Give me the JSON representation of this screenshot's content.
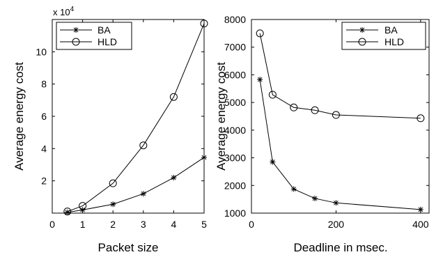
{
  "chart_data": [
    {
      "type": "line",
      "xlabel": "Packet size",
      "ylabel": "Average energy cost",
      "multiplier": "x 10",
      "multiplier_exp": "4",
      "xlim": [
        0,
        5
      ],
      "ylim": [
        0,
        12
      ],
      "xticks": [
        0,
        1,
        2,
        3,
        4,
        5
      ],
      "xtick_labels": [
        "0",
        "1",
        "2",
        "3",
        "4",
        "5"
      ],
      "yticks": [
        2,
        4,
        6,
        8,
        10
      ],
      "ytick_labels": [
        "2",
        "4",
        "6",
        "8",
        "10"
      ],
      "legend_position": "top-left",
      "series": [
        {
          "name": "BA",
          "marker": "star",
          "x": [
            0.5,
            1,
            2,
            3,
            4,
            5
          ],
          "y": [
            0.05,
            0.2,
            0.55,
            1.2,
            2.2,
            3.45
          ]
        },
        {
          "name": "HLD",
          "marker": "circle",
          "x": [
            0.5,
            1,
            2,
            3,
            4,
            5
          ],
          "y": [
            0.1,
            0.45,
            1.85,
            4.2,
            7.2,
            11.75
          ]
        }
      ]
    },
    {
      "type": "line",
      "xlabel": "Deadline in msec.",
      "ylabel": "Average energy cost",
      "xlim": [
        0,
        420
      ],
      "ylim": [
        1000,
        8000
      ],
      "xticks": [
        0,
        200,
        400
      ],
      "xtick_labels": [
        "0",
        "200",
        "400"
      ],
      "yticks": [
        1000,
        2000,
        3000,
        4000,
        5000,
        6000,
        7000,
        8000
      ],
      "ytick_labels": [
        "1000",
        "2000",
        "3000",
        "4000",
        "5000",
        "6000",
        "7000",
        "8000"
      ],
      "legend_position": "top-right",
      "series": [
        {
          "name": "BA",
          "marker": "star",
          "x": [
            20,
            50,
            100,
            150,
            200,
            400
          ],
          "y": [
            5830,
            2850,
            1870,
            1530,
            1370,
            1130
          ]
        },
        {
          "name": "HLD",
          "marker": "circle",
          "x": [
            20,
            50,
            100,
            150,
            200,
            400
          ],
          "y": [
            7500,
            5280,
            4820,
            4720,
            4550,
            4430
          ]
        }
      ]
    }
  ]
}
